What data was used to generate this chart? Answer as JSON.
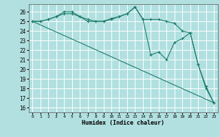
{
  "xlabel": "Humidex (Indice chaleur)",
  "background_color": "#b2e0e0",
  "grid_color": "#d0e8e8",
  "line_color": "#1a7a6a",
  "xlim": [
    -0.5,
    23.5
  ],
  "ylim": [
    15.5,
    26.8
  ],
  "xticks": [
    0,
    1,
    2,
    3,
    4,
    5,
    6,
    7,
    8,
    9,
    10,
    11,
    12,
    13,
    14,
    15,
    16,
    17,
    18,
    19,
    20,
    21,
    22,
    23
  ],
  "yticks": [
    16,
    17,
    18,
    19,
    20,
    21,
    22,
    23,
    24,
    25,
    26
  ],
  "series": [
    {
      "x": [
        0,
        1,
        2,
        3,
        4,
        5,
        6,
        7,
        8,
        9,
        10,
        11,
        12,
        13,
        14,
        15,
        16,
        17,
        18,
        19,
        20,
        21,
        22,
        23
      ],
      "y": [
        25,
        25,
        25.2,
        25.5,
        26,
        26,
        25.5,
        25,
        25,
        25,
        25.3,
        25.5,
        25.8,
        26.5,
        25.2,
        25.2,
        25.2,
        25,
        24.8,
        24,
        23.8,
        20.5,
        18,
        16.5
      ]
    },
    {
      "x": [
        0,
        1,
        2,
        3,
        4,
        5,
        6,
        7,
        8,
        9,
        10,
        11,
        12,
        13,
        14,
        15,
        16,
        17,
        18,
        19,
        20,
        21,
        22,
        23
      ],
      "y": [
        25,
        25,
        25.2,
        25.5,
        25.8,
        25.8,
        25.5,
        25.2,
        25,
        25,
        25.2,
        25.5,
        25.8,
        26.5,
        25.2,
        21.5,
        21.8,
        21,
        22.8,
        23.2,
        23.8,
        20.5,
        18.2,
        16.5
      ]
    },
    {
      "x": [
        0,
        23
      ],
      "y": [
        25,
        16.5
      ]
    }
  ]
}
